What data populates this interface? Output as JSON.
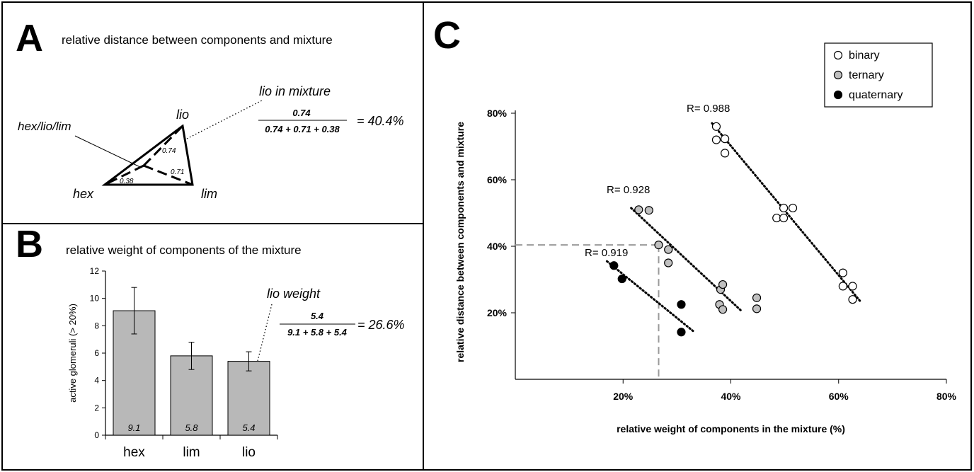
{
  "panel_a": {
    "letter": "A",
    "title": "relative distance between components and mixture",
    "vertices": {
      "top": "lio",
      "left": "hex",
      "right": "lim"
    },
    "distances": {
      "lio": "0.74",
      "lim": "0.71",
      "hex": "0.38"
    },
    "mixture_label": "hex/lio/lim",
    "callout": "lio in mixture",
    "formula": {
      "numerator": "0.74",
      "denominator": "0.74 + 0.71 + 0.38",
      "result": "= 40.4%"
    }
  },
  "panel_b": {
    "letter": "B",
    "title": "relative weight of components of the mixture",
    "callout": "lio weight",
    "formula": {
      "numerator": "5.4",
      "denominator": "9.1 + 5.8 + 5.4",
      "result": "= 26.6%"
    }
  },
  "panel_c": {
    "letter": "C"
  },
  "chart_data": [
    {
      "type": "bar",
      "ylabel": "active glomeruli (> 20%)",
      "ylim": [
        0,
        12
      ],
      "yticks": [
        "0",
        "2",
        "4",
        "6",
        "8",
        "10",
        "12"
      ],
      "categories": [
        "hex",
        "lim",
        "lio"
      ],
      "values": [
        9.1,
        5.8,
        5.4
      ],
      "value_labels": [
        "9.1",
        "5.8",
        "5.4"
      ],
      "errors": [
        1.7,
        1.0,
        0.7
      ],
      "bar_color": "#b8b8b8"
    },
    {
      "type": "scatter",
      "xlabel": "relative weight of components in the mixture (%)",
      "ylabel": "relative distance between components and mixture",
      "xlim": [
        0,
        80
      ],
      "ylim": [
        0,
        80
      ],
      "xticks": [
        "20%",
        "40%",
        "60%",
        "80%"
      ],
      "yticks": [
        "20%",
        "40%",
        "60%",
        "80%"
      ],
      "legend_position": "top-right",
      "series": [
        {
          "name": "binary",
          "fill": "#ffffff",
          "r_label": "R= 0.988",
          "trend": [
            [
              36.5,
              77
            ],
            [
              64,
              23.5
            ]
          ],
          "points": [
            [
              37.3,
              76
            ],
            [
              37.3,
              72
            ],
            [
              38.9,
              72.3
            ],
            [
              38.9,
              68
            ],
            [
              48.5,
              48.5
            ],
            [
              49.8,
              48.5
            ],
            [
              49.8,
              51.5
            ],
            [
              51.5,
              51.5
            ],
            [
              60.8,
              32
            ],
            [
              60.8,
              28
            ],
            [
              62.6,
              28
            ],
            [
              62.6,
              24
            ]
          ]
        },
        {
          "name": "ternary",
          "fill": "#c0c0c0",
          "r_label": "R= 0.928",
          "trend": [
            [
              21.5,
              51.5
            ],
            [
              42,
              20.5
            ]
          ],
          "points": [
            [
              22.9,
              51
            ],
            [
              24.8,
              50.8
            ],
            [
              26.6,
              40.4
            ],
            [
              28.4,
              39
            ],
            [
              28.4,
              35
            ],
            [
              38.1,
              27
            ],
            [
              38.5,
              28.5
            ],
            [
              37.9,
              22.5
            ],
            [
              38.5,
              21
            ],
            [
              44.8,
              24.5
            ],
            [
              44.8,
              21.2
            ]
          ]
        },
        {
          "name": "quaternary",
          "fill": "#000000",
          "r_label": "R= 0.919",
          "trend": [
            [
              17,
              35.5
            ],
            [
              33,
              14.5
            ]
          ],
          "points": [
            [
              18.3,
              34.2
            ],
            [
              19.8,
              30.2
            ],
            [
              30.8,
              22.5
            ],
            [
              30.8,
              14.2
            ]
          ]
        }
      ],
      "highlight": {
        "x": 26.6,
        "y": 40.4
      }
    }
  ]
}
